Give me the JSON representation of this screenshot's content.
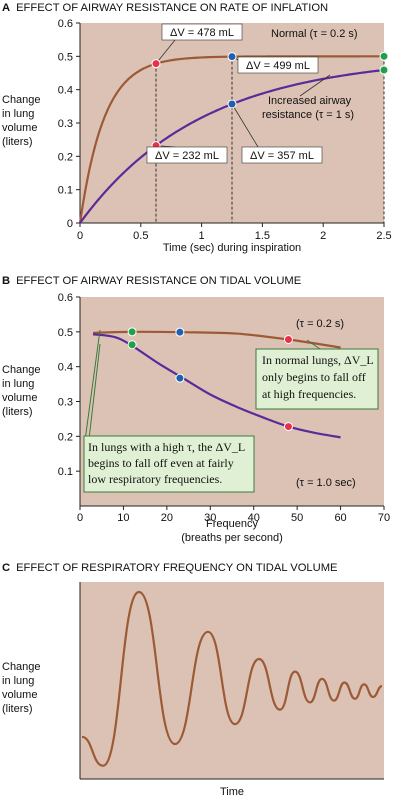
{
  "chart_data": [
    {
      "panel": "A",
      "type": "line",
      "title": "EFFECT OF AIRWAY RESISTANCE ON RATE OF INFLATION",
      "xlabel": "Time (sec) during inspiration",
      "ylabel": [
        "Change",
        "in lung",
        "volume",
        "(liters)"
      ],
      "xlim": [
        0,
        2.5
      ],
      "ylim": [
        0,
        0.6
      ],
      "xticks": [
        "0",
        "0.5",
        "1",
        "1.5",
        "2",
        "2.5"
      ],
      "yticks": [
        "0",
        "0.1",
        "0.2",
        "0.3",
        "0.4",
        "0.5",
        "0.6"
      ],
      "vmax": 0.5,
      "series": [
        {
          "name": "Normal (τ = 0.2 s)",
          "tau": 0.2,
          "color": "#9c5a36"
        },
        {
          "name_lines": [
            "Increased airway",
            "resistance (τ = 1 s)"
          ],
          "tau": 1.0,
          "color": "#5b2a9a"
        }
      ],
      "markers": [
        {
          "x": 0.625,
          "y": 0.478,
          "color": "#e8304a",
          "label": "ΔV = 478 mL"
        },
        {
          "x": 1.25,
          "y": 0.499,
          "color": "#1f5fb0",
          "label": "ΔV = 499 mL"
        },
        {
          "x": 2.5,
          "y": 0.5,
          "color": "#1fa04a"
        },
        {
          "x": 0.625,
          "y": 0.232,
          "color": "#e8304a",
          "label": "ΔV = 232 mL"
        },
        {
          "x": 1.25,
          "y": 0.357,
          "color": "#1f5fb0",
          "label": "ΔV = 357 mL"
        },
        {
          "x": 2.5,
          "y": 0.459,
          "color": "#1fa04a"
        }
      ]
    },
    {
      "panel": "B",
      "type": "line",
      "title": "EFFECT OF AIRWAY RESISTANCE ON TIDAL VOLUME",
      "xlabel": [
        "Frequency",
        "(breaths per second)"
      ],
      "ylabel": [
        "Change",
        "in lung",
        "volume",
        "(liters)"
      ],
      "xlim": [
        0,
        70
      ],
      "ylim": [
        0,
        0.6
      ],
      "xticks": [
        "0",
        "10",
        "20",
        "30",
        "40",
        "50",
        "60",
        "70"
      ],
      "yticks": [
        "0.1",
        "0.2",
        "0.3",
        "0.4",
        "0.5",
        "0.6"
      ],
      "series": [
        {
          "name": "(τ = 0.2 s)",
          "color": "#9c5a36",
          "x": [
            3,
            12,
            24,
            36,
            48,
            60
          ],
          "y": [
            0.497,
            0.5,
            0.499,
            0.495,
            0.478,
            0.455
          ]
        },
        {
          "name": "(τ = 1.0 sec)",
          "color": "#5b2a9a",
          "x": [
            3,
            8,
            12,
            18,
            24,
            30,
            36,
            42,
            48,
            54,
            60
          ],
          "y": [
            0.493,
            0.485,
            0.46,
            0.41,
            0.365,
            0.32,
            0.285,
            0.255,
            0.228,
            0.21,
            0.197
          ]
        }
      ],
      "markers": [
        {
          "x": 12,
          "y": 0.5,
          "color": "#1fa04a"
        },
        {
          "x": 23,
          "y": 0.499,
          "color": "#1f5fb0"
        },
        {
          "x": 48,
          "y": 0.478,
          "color": "#e8304a"
        },
        {
          "x": 12,
          "y": 0.463,
          "color": "#1fa04a"
        },
        {
          "x": 23,
          "y": 0.367,
          "color": "#1f5fb0"
        },
        {
          "x": 48,
          "y": 0.228,
          "color": "#e8304a"
        }
      ],
      "callouts": [
        {
          "lines": [
            "In normal lungs, ΔV_L",
            "only begins to fall off",
            "at high frequencies."
          ]
        },
        {
          "lines": [
            "In lungs with a high τ, the ΔV_L",
            "begins to fall off even at fairly",
            "low respiratory frequencies."
          ]
        }
      ]
    },
    {
      "panel": "C",
      "type": "line",
      "title": "EFFECT OF RESPIRATORY FREQUENCY ON TIDAL VOLUME",
      "xlabel": "Time",
      "ylabel": [
        "Change",
        "in lung",
        "volume",
        "(liters)"
      ],
      "series": [
        {
          "name": "",
          "color": "#9c5a36",
          "x": [
            0,
            0.07,
            0.19,
            0.31,
            0.42,
            0.51,
            0.59,
            0.66,
            0.71,
            0.76,
            0.8,
            0.84,
            0.875,
            0.91,
            0.94,
            0.97,
            1.0
          ],
          "y": [
            0.2,
            0.04,
            1.0,
            0.16,
            0.78,
            0.27,
            0.63,
            0.35,
            0.56,
            0.39,
            0.52,
            0.4,
            0.5,
            0.41,
            0.49,
            0.42,
            0.48
          ]
        }
      ]
    }
  ],
  "colors": {
    "plot_bg": "#dcc2b4",
    "normal": "#9c5a36",
    "resist": "#5b2a9a",
    "callout_bg": "#e0f0d4",
    "callout_border": "#3b7a3b"
  }
}
